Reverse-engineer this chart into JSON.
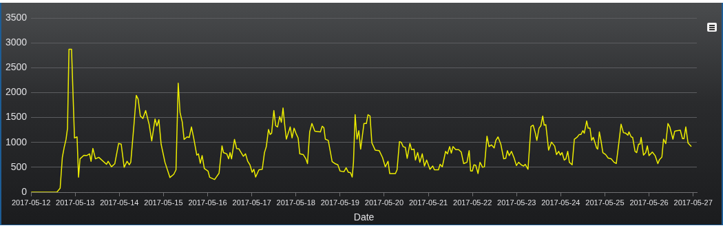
{
  "chart_data": {
    "type": "line",
    "xlabel": "Date",
    "grid": "y",
    "legend": false,
    "marker": "none",
    "line_style": "solid",
    "ylim": [
      0,
      3500
    ],
    "yticks": [
      0,
      500,
      1000,
      1500,
      2000,
      2500,
      3000,
      3500
    ],
    "xlim": [
      "2017-05-12",
      "2017-05-27T02:00"
    ],
    "xticks": [
      "2017-05-12",
      "2017-05-13",
      "2017-05-14",
      "2017-05-15",
      "2017-05-16",
      "2017-05-17",
      "2017-05-18",
      "2017-05-19",
      "2017-05-20",
      "2017-05-21",
      "2017-05-22",
      "2017-05-23",
      "2017-05-24",
      "2017-05-25",
      "2017-05-26",
      "2017-05-27"
    ],
    "series": [
      {
        "color": "#eeee00",
        "x": [
          "2017-05-12T00:00",
          "2017-05-12T14:00",
          "2017-05-12T15:48",
          "2017-05-12T17:00",
          "2017-05-12T18:00",
          "2017-05-12T19:00",
          "2017-05-12T19:48",
          "2017-05-12T20:36",
          "2017-05-12T22:00",
          "2017-05-12T23:36",
          "2017-05-13T01:00",
          "2017-05-13T01:48",
          "2017-05-13T02:36",
          "2017-05-13T04:42",
          "2017-05-13T06:12",
          "2017-05-13T07:48",
          "2017-05-13T08:36",
          "2017-05-13T09:36",
          "2017-05-13T11:00",
          "2017-05-13T12:48",
          "2017-05-13T17:00",
          "2017-05-13T17:54",
          "2017-05-13T19:42",
          "2017-05-13T21:30",
          "2017-05-13T23:36",
          "2017-05-14T01:00",
          "2017-05-14T02:36",
          "2017-05-14T04:12",
          "2017-05-14T05:24",
          "2017-05-14T06:12",
          "2017-05-14T08:00",
          "2017-05-14T09:12",
          "2017-05-14T10:12",
          "2017-05-14T11:24",
          "2017-05-14T12:48",
          "2017-05-14T14:18",
          "2017-05-14T16:12",
          "2017-05-14T17:36",
          "2017-05-14T19:24",
          "2017-05-14T20:24",
          "2017-05-14T21:30",
          "2017-05-14T22:42",
          "2017-05-15T00:48",
          "2017-05-15T03:30",
          "2017-05-15T05:36",
          "2017-05-15T06:48",
          "2017-05-15T08:00",
          "2017-05-15T09:00",
          "2017-05-15T10:12",
          "2017-05-15T11:12",
          "2017-05-15T12:48",
          "2017-05-15T14:00",
          "2017-05-15T15:12",
          "2017-05-15T16:24",
          "2017-05-15T18:06",
          "2017-05-15T19:00",
          "2017-05-15T20:00",
          "2017-05-15T21:00",
          "2017-05-15T22:12",
          "2017-05-16T00:12",
          "2017-05-16T01:06",
          "2017-05-16T03:48",
          "2017-05-16T06:12",
          "2017-05-16T07:48",
          "2017-05-16T08:36",
          "2017-05-16T10:24",
          "2017-05-16T11:24",
          "2017-05-16T12:12",
          "2017-05-16T13:00",
          "2017-05-16T14:36",
          "2017-05-16T15:48",
          "2017-05-16T17:00",
          "2017-05-16T19:24",
          "2017-05-16T20:36",
          "2017-05-16T21:48",
          "2017-05-16T23:00",
          "2017-05-17T00:12",
          "2017-05-17T01:06",
          "2017-05-17T02:06",
          "2017-05-17T03:54",
          "2017-05-17T05:42",
          "2017-05-17T06:54",
          "2017-05-17T07:54",
          "2017-05-17T09:06",
          "2017-05-17T10:00",
          "2017-05-17T10:48",
          "2017-05-17T12:00",
          "2017-05-17T13:00",
          "2017-05-17T14:00",
          "2017-05-17T15:12",
          "2017-05-17T16:06",
          "2017-05-17T17:00",
          "2017-05-17T17:54",
          "2017-05-17T18:48",
          "2017-05-17T20:54",
          "2017-05-17T21:54",
          "2017-05-17T23:00",
          "2017-05-18T00:00",
          "2017-05-18T01:12",
          "2017-05-18T02:06",
          "2017-05-18T04:00",
          "2017-05-18T05:24",
          "2017-05-18T06:18",
          "2017-05-18T07:30",
          "2017-05-18T08:42",
          "2017-05-18T10:18",
          "2017-05-18T13:18",
          "2017-05-18T14:18",
          "2017-05-18T15:12",
          "2017-05-18T16:00",
          "2017-05-18T17:36",
          "2017-05-18T19:42",
          "2017-05-18T21:12",
          "2017-05-18T22:48",
          "2017-05-19T00:00",
          "2017-05-19T02:06",
          "2017-05-19T03:18",
          "2017-05-19T04:30",
          "2017-05-19T05:42",
          "2017-05-19T06:36",
          "2017-05-19T07:18",
          "2017-05-19T08:12",
          "2017-05-19T09:12",
          "2017-05-19T10:12",
          "2017-05-19T11:12",
          "2017-05-19T13:00",
          "2017-05-19T14:18",
          "2017-05-19T15:12",
          "2017-05-19T16:18",
          "2017-05-19T17:18",
          "2017-05-19T19:06",
          "2017-05-19T21:18",
          "2017-05-19T23:06",
          "2017-05-20T00:36",
          "2017-05-20T02:06",
          "2017-05-20T03:00",
          "2017-05-20T06:06",
          "2017-05-20T07:00",
          "2017-05-20T08:18",
          "2017-05-20T09:18",
          "2017-05-20T10:18",
          "2017-05-20T11:30",
          "2017-05-20T12:30",
          "2017-05-20T14:00",
          "2017-05-20T14:54",
          "2017-05-20T16:12",
          "2017-05-20T17:00",
          "2017-05-20T18:12",
          "2017-05-20T19:24",
          "2017-05-20T20:42",
          "2017-05-20T21:54",
          "2017-05-20T23:06",
          "2017-05-21T00:06",
          "2017-05-21T00:54",
          "2017-05-21T02:24",
          "2017-05-21T03:18",
          "2017-05-21T05:30",
          "2017-05-21T06:24",
          "2017-05-21T07:36",
          "2017-05-21T09:24",
          "2017-05-21T10:24",
          "2017-05-21T11:36",
          "2017-05-21T12:30",
          "2017-05-21T13:24",
          "2017-05-21T14:54",
          "2017-05-21T16:30",
          "2017-05-21T17:54",
          "2017-05-21T19:12",
          "2017-05-21T21:00",
          "2017-05-21T22:12",
          "2017-05-21T23:00",
          "2017-05-21T23:54",
          "2017-05-22T00:48",
          "2017-05-22T01:48",
          "2017-05-22T03:00",
          "2017-05-22T04:06",
          "2017-05-22T05:30",
          "2017-05-22T06:30",
          "2017-05-22T07:54",
          "2017-05-22T09:00",
          "2017-05-22T10:18",
          "2017-05-22T11:48",
          "2017-05-22T12:42",
          "2017-05-22T13:54",
          "2017-05-22T15:24",
          "2017-05-22T17:00",
          "2017-05-22T18:06",
          "2017-05-22T19:00",
          "2017-05-22T20:00",
          "2017-05-22T21:12",
          "2017-05-22T22:42",
          "2017-05-22T23:54",
          "2017-05-23T01:06",
          "2017-05-23T02:30",
          "2017-05-23T03:48",
          "2017-05-23T04:42",
          "2017-05-23T06:12",
          "2017-05-23T07:48",
          "2017-05-23T09:00",
          "2017-05-23T10:12",
          "2017-05-23T11:00",
          "2017-05-23T12:12",
          "2017-05-23T13:12",
          "2017-05-23T14:12",
          "2017-05-23T15:00",
          "2017-05-23T15:54",
          "2017-05-23T17:24",
          "2017-05-23T19:00",
          "2017-05-23T20:42",
          "2017-05-23T21:42",
          "2017-05-23T22:54",
          "2017-05-23T23:48",
          "2017-05-24T00:42",
          "2017-05-24T01:54",
          "2017-05-24T02:48",
          "2017-05-24T03:48",
          "2017-05-24T04:42",
          "2017-05-24T06:12",
          "2017-05-24T07:24",
          "2017-05-24T08:48",
          "2017-05-24T10:06",
          "2017-05-24T11:00",
          "2017-05-24T12:00",
          "2017-05-24T12:48",
          "2017-05-24T14:06",
          "2017-05-24T14:54",
          "2017-05-24T15:54",
          "2017-05-24T16:48",
          "2017-05-24T17:42",
          "2017-05-24T19:30",
          "2017-05-24T20:06",
          "2017-05-24T21:00",
          "2017-05-24T21:54",
          "2017-05-24T22:54",
          "2017-05-25T00:24",
          "2017-05-25T01:48",
          "2017-05-25T03:24",
          "2017-05-25T05:00",
          "2017-05-25T06:12",
          "2017-05-25T07:36",
          "2017-05-25T08:48",
          "2017-05-25T10:06",
          "2017-05-25T11:18",
          "2017-05-25T12:30",
          "2017-05-25T13:06",
          "2017-05-25T14:18",
          "2017-05-25T15:06",
          "2017-05-25T16:24",
          "2017-05-25T17:18",
          "2017-05-25T18:18",
          "2017-05-25T19:06",
          "2017-05-25T19:42",
          "2017-05-25T21:00",
          "2017-05-25T22:12",
          "2017-05-25T23:06",
          "2017-05-26T00:00",
          "2017-05-26T01:48",
          "2017-05-26T03:18",
          "2017-05-26T04:48",
          "2017-05-26T05:42",
          "2017-05-26T07:00",
          "2017-05-26T07:54",
          "2017-05-26T09:06",
          "2017-05-26T10:18",
          "2017-05-26T11:18",
          "2017-05-26T13:00",
          "2017-05-26T14:00",
          "2017-05-26T15:12",
          "2017-05-26T17:00",
          "2017-05-26T18:12",
          "2017-05-26T19:00",
          "2017-05-26T20:00",
          "2017-05-26T21:12",
          "2017-05-26T23:00"
        ],
        "values": [
          0,
          0,
          80,
          700,
          900,
          1060,
          1280,
          2870,
          2870,
          1090,
          1110,
          300,
          670,
          740,
          735,
          770,
          620,
          880,
          670,
          700,
          560,
          620,
          510,
          570,
          980,
          965,
          500,
          620,
          550,
          600,
          1380,
          1945,
          1870,
          1530,
          1480,
          1640,
          1360,
          1030,
          1470,
          1330,
          1455,
          965,
          600,
          295,
          360,
          450,
          2190,
          1600,
          1410,
          1060,
          1110,
          1100,
          1310,
          1090,
          745,
          770,
          580,
          735,
          475,
          425,
          300,
          255,
          380,
          930,
          795,
          770,
          670,
          795,
          670,
          1060,
          875,
          870,
          720,
          770,
          620,
          550,
          400,
          460,
          305,
          450,
          460,
          795,
          915,
          1260,
          1160,
          1185,
          1640,
          1335,
          1310,
          1520,
          1405,
          1690,
          1355,
          1065,
          1310,
          1090,
          1285,
          1185,
          1090,
          770,
          755,
          670,
          575,
          1210,
          1380,
          1225,
          1210,
          1325,
          1295,
          1065,
          1040,
          615,
          575,
          550,
          425,
          410,
          490,
          400,
          390,
          305,
          600,
          1555,
          1065,
          1235,
          865,
          1380,
          1380,
          1555,
          1530,
          990,
          845,
          835,
          695,
          510,
          620,
          375,
          375,
          450,
          1015,
          1000,
          915,
          900,
          680,
          980,
          855,
          865,
          645,
          795,
          600,
          770,
          525,
          645,
          540,
          460,
          525,
          450,
          450,
          560,
          510,
          820,
          770,
          915,
          785,
          915,
          855,
          855,
          805,
          575,
          600,
          835,
          425,
          425,
          550,
          540,
          375,
          600,
          500,
          510,
          1125,
          915,
          950,
          890,
          1040,
          1110,
          965,
          670,
          680,
          835,
          735,
          820,
          680,
          535,
          600,
          550,
          525,
          560,
          460,
          1320,
          1345,
          1185,
          1040,
          1285,
          1335,
          1530,
          1345,
          1355,
          845,
          1005,
          925,
          755,
          820,
          745,
          795,
          645,
          670,
          820,
          600,
          550,
          1065,
          1100,
          1160,
          1160,
          1235,
          1185,
          1430,
          1285,
          1285,
          1040,
          1100,
          890,
          865,
          1210,
          1030,
          795,
          755,
          685,
          670,
          600,
          575,
          990,
          1365,
          1195,
          1185,
          1145,
          1210,
          1110,
          1100,
          820,
          795,
          965,
          965,
          1100,
          745,
          795,
          930,
          735,
          805,
          735,
          575,
          655,
          705,
          1065,
          975,
          1380,
          1310,
          1065,
          1225,
          1235,
          1245,
          1075,
          1075,
          1310,
          990,
          915
        ]
      }
    ]
  }
}
